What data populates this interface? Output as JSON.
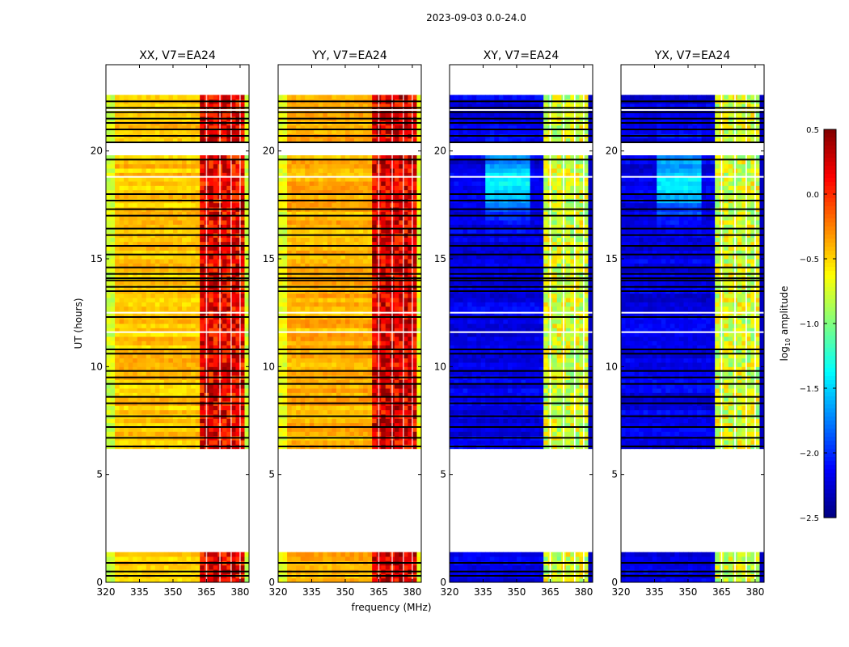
{
  "chart_data": {
    "type": "heatmap",
    "title": "2023-09-03 0.0-24.0",
    "xlabel": "frequency (MHz)",
    "ylabel": "UT (hours)",
    "xlim": [
      320,
      384
    ],
    "ylim": [
      0,
      24
    ],
    "xticks": [
      320,
      335,
      350,
      365,
      380
    ],
    "yticks": [
      0,
      5,
      10,
      15,
      20
    ],
    "panels": [
      {
        "title": "XX, V7=EA24",
        "baseline": -0.45,
        "band_level": 0.15
      },
      {
        "title": "YY, V7=EA24",
        "baseline": -0.4,
        "band_level": 0.2
      },
      {
        "title": "XY, V7=EA24",
        "baseline": -2.2,
        "band_level": -0.75
      },
      {
        "title": "YX, V7=EA24",
        "baseline": -2.2,
        "band_level": -0.75
      }
    ],
    "data_intervals_hours": [
      [
        0,
        1.4
      ],
      [
        6.15,
        19.8
      ],
      [
        20.3,
        22.6
      ]
    ],
    "rfi_band_mhz": [
      362,
      381
    ],
    "band_gaps_mhz": [
      365,
      371,
      376,
      380
    ],
    "flagged_black_hours": [
      0.3,
      0.5,
      0.9,
      6.3,
      6.7,
      7.2,
      7.7,
      8.3,
      8.6,
      9.2,
      9.5,
      9.8,
      10.6,
      10.8,
      12.3,
      13.5,
      13.7,
      14.0,
      14.1,
      14.3,
      14.6,
      15.2,
      15.6,
      16.1,
      16.4,
      17.0,
      17.3,
      17.7,
      18.0,
      19.6,
      20.4,
      20.7,
      21.0,
      21.3,
      21.5,
      21.8,
      22.0,
      22.3
    ],
    "flagged_white_hours": [
      12.5,
      11.6,
      18.8,
      21.9
    ],
    "colorbar": {
      "label": "log10 amplitude",
      "label_main": "log",
      "label_sub": "10",
      "label_rest": " amplitude",
      "range": [
        -2.5,
        0.5
      ],
      "ticks": [
        "0.5",
        "0.0",
        "−0.5",
        "−1.0",
        "−1.5",
        "−2.0",
        "−2.5"
      ],
      "tick_values": [
        0.5,
        0.0,
        -0.5,
        -1.0,
        -1.5,
        -2.0,
        -2.5
      ],
      "colormap": "jet"
    }
  }
}
